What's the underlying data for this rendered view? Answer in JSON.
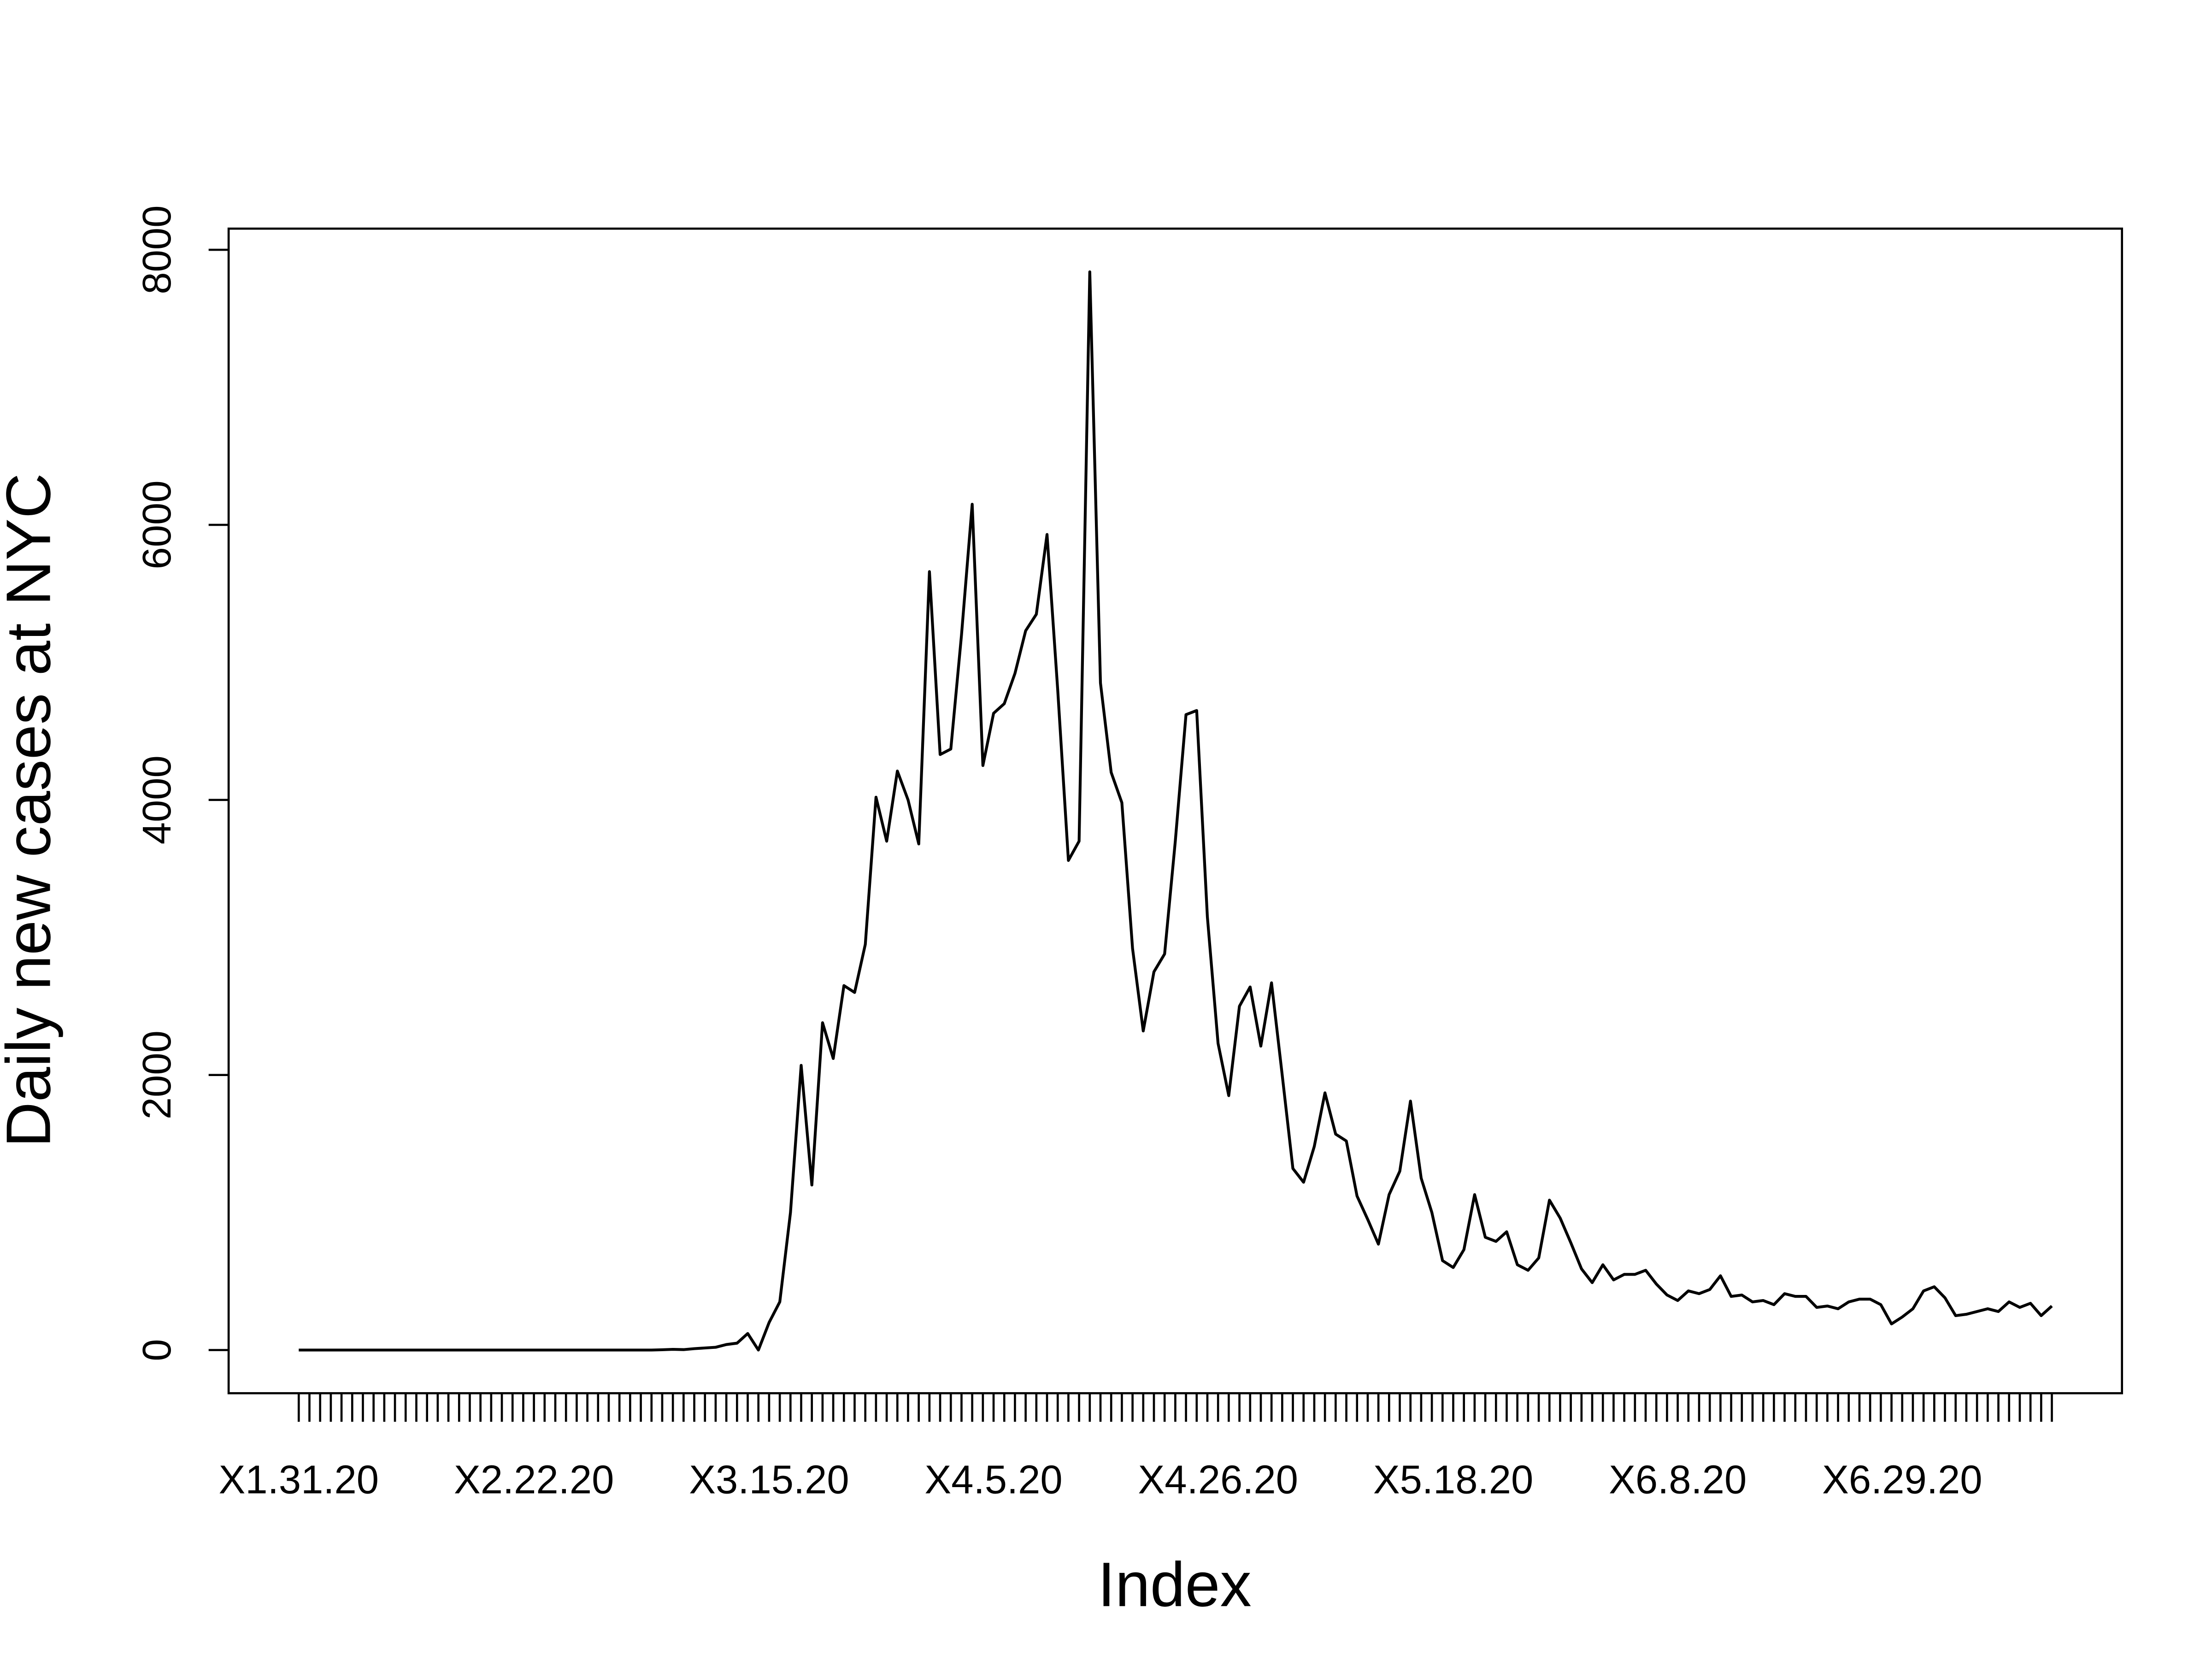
{
  "chart_data": {
    "type": "line",
    "xlabel": "Index",
    "ylabel": "Daily new cases at NYC",
    "categories": [
      "X1.31.20",
      null,
      null,
      null,
      null,
      null,
      null,
      null,
      null,
      null,
      null,
      null,
      null,
      null,
      null,
      null,
      null,
      null,
      null,
      null,
      null,
      null,
      "X2.22.20",
      null,
      null,
      null,
      null,
      null,
      null,
      null,
      null,
      null,
      null,
      null,
      null,
      null,
      null,
      null,
      null,
      null,
      null,
      null,
      null,
      null,
      "X3.15.20",
      null,
      null,
      null,
      null,
      null,
      null,
      null,
      null,
      null,
      null,
      null,
      null,
      null,
      null,
      null,
      null,
      null,
      null,
      null,
      null,
      "X4.5.20",
      null,
      null,
      null,
      null,
      null,
      null,
      null,
      null,
      null,
      null,
      null,
      null,
      null,
      null,
      null,
      null,
      null,
      null,
      null,
      null,
      "X4.26.20",
      null,
      null,
      null,
      null,
      null,
      null,
      null,
      null,
      null,
      null,
      null,
      null,
      null,
      null,
      null,
      null,
      null,
      null,
      null,
      null,
      null,
      "X5.18.20",
      null,
      null,
      null,
      null,
      null,
      null,
      null,
      null,
      null,
      null,
      null,
      null,
      null,
      null,
      null,
      null,
      null,
      null,
      null,
      null,
      "X6.8.20",
      null,
      null,
      null,
      null,
      null,
      null,
      null,
      null,
      null,
      null,
      null,
      null,
      null,
      null,
      null,
      null,
      null,
      null,
      null,
      null,
      "X6.29.20",
      null,
      null,
      null,
      null,
      null,
      null,
      null,
      null,
      null,
      null,
      null,
      null,
      null,
      null
    ],
    "values": [
      0,
      0,
      0,
      0,
      0,
      0,
      0,
      0,
      0,
      0,
      0,
      0,
      0,
      0,
      0,
      0,
      0,
      0,
      0,
      0,
      0,
      0,
      0,
      0,
      0,
      0,
      0,
      0,
      0,
      0,
      0,
      0,
      0,
      0,
      2,
      5,
      3,
      10,
      15,
      20,
      40,
      50,
      120,
      0,
      200,
      350,
      1000,
      2070,
      1200,
      2380,
      2120,
      2650,
      2600,
      2950,
      4020,
      3700,
      4210,
      4000,
      3680,
      5660,
      4330,
      4370,
      5200,
      6150,
      4250,
      4630,
      4700,
      4920,
      5230,
      5350,
      5930,
      4800,
      3560,
      3700,
      7840,
      4850,
      4200,
      3980,
      2920,
      2320,
      2750,
      2880,
      3700,
      4620,
      4650,
      3150,
      2230,
      1850,
      2500,
      2640,
      2210,
      2670,
      2000,
      1320,
      1220,
      1480,
      1870,
      1570,
      1520,
      1120,
      950,
      770,
      1130,
      1300,
      1810,
      1250,
      1000,
      650,
      600,
      730,
      1130,
      820,
      790,
      860,
      620,
      580,
      670,
      1090,
      960,
      780,
      590,
      490,
      620,
      510,
      550,
      550,
      580,
      480,
      400,
      360,
      430,
      410,
      440,
      540,
      390,
      400,
      350,
      360,
      330,
      410,
      390,
      390,
      310,
      320,
      300,
      350,
      370,
      370,
      330,
      190,
      240,
      300,
      430,
      460,
      380,
      250,
      260,
      280,
      300,
      280,
      350,
      310,
      340,
      250,
      320
    ],
    "color": "#000000",
    "ylim": [
      -314,
      8154
    ],
    "yticks": [
      0,
      2000,
      4000,
      6000,
      8000
    ]
  }
}
